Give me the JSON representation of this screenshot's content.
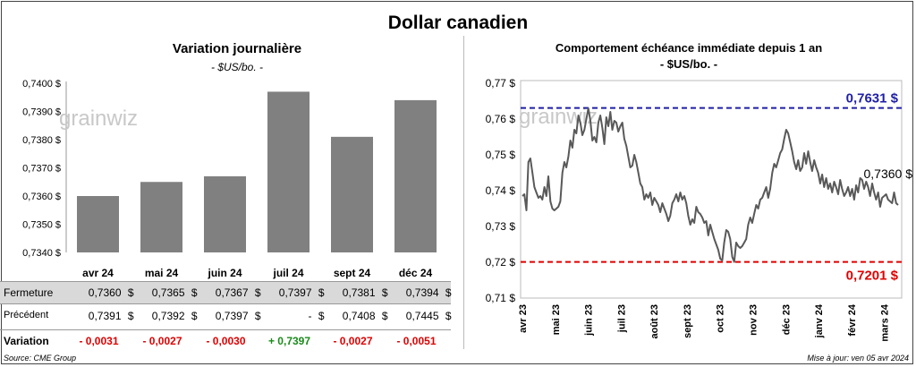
{
  "title": "Dollar canadien",
  "left": {
    "subtitle": "Variation  journalière",
    "unit": "- $US/bo. -",
    "watermark": "grainwiz"
  },
  "right": {
    "subtitle": "Comportement échéance immédiate depuis 1 an",
    "unit": "- $US/bo. -",
    "watermark": "grainwiz"
  },
  "table": {
    "rows": [
      {
        "label": "Fermeture",
        "values": [
          "0,7360",
          "0,7365",
          "0,7367",
          "0,7397",
          "0,7381",
          "0,7394"
        ],
        "currency": "$"
      },
      {
        "label": "Précédent",
        "values": [
          "0,7391",
          "0,7392",
          "0,7397",
          "-",
          "0,7408",
          "0,7445"
        ],
        "currency": "$"
      },
      {
        "label": "Variation",
        "values": [
          "- 0,0031",
          "- 0,0027",
          "- 0,0030",
          "+ 0,7397",
          "- 0,0027",
          "- 0,0051"
        ],
        "signs": [
          "neg",
          "neg",
          "neg",
          "pos",
          "neg",
          "neg"
        ]
      }
    ]
  },
  "footer": {
    "source": "Source: CME Group",
    "update": "Mise à jour: ven 05 avr 2024"
  },
  "colors": {
    "bar": "#808080",
    "line": "#595959",
    "high": "#1f1fa8",
    "low": "#e00000"
  },
  "chart_data": [
    {
      "type": "bar",
      "categories": [
        "avr 24",
        "mai 24",
        "juin 24",
        "juil 24",
        "sept 24",
        "déc 24"
      ],
      "values": [
        0.736,
        0.7365,
        0.7367,
        0.7397,
        0.7381,
        0.7394
      ],
      "ylim": [
        0.734,
        0.74
      ],
      "yticks": [
        "0,7340 $",
        "0,7350 $",
        "0,7360 $",
        "0,7370 $",
        "0,7380 $",
        "0,7390 $",
        "0,7400 $"
      ],
      "grid": false
    },
    {
      "type": "line",
      "ylim": [
        0.71,
        0.77
      ],
      "yticks": [
        "0,71 $",
        "0,72 $",
        "0,73 $",
        "0,74 $",
        "0,75 $",
        "0,76 $",
        "0,77 $"
      ],
      "xticks": [
        "avr 23",
        "mai 23",
        "juin 23",
        "juil 23",
        "août 23",
        "sept 23",
        "oct 23",
        "nov 23",
        "déc 23",
        "janv 24",
        "févr 24",
        "mars 24"
      ],
      "high": {
        "value": 0.7631,
        "label": "0,7631 $"
      },
      "low": {
        "value": 0.7201,
        "label": "0,7201 $"
      },
      "last": {
        "value": 0.736,
        "label": "0,7360 $"
      },
      "series": [
        {
          "values": [
            0.7385,
            0.739,
            0.7345,
            0.748,
            0.749,
            0.745,
            0.741,
            0.7395,
            0.738,
            0.7385,
            0.7375,
            0.741,
            0.7385,
            0.744,
            0.737,
            0.735,
            0.7345,
            0.735,
            0.7355,
            0.737,
            0.745,
            0.748,
            0.7465,
            0.7495,
            0.754,
            0.752,
            0.757,
            0.756,
            0.761,
            0.759,
            0.7555,
            0.757,
            0.76,
            0.763,
            0.7595,
            0.754,
            0.755,
            0.7535,
            0.759,
            0.761,
            0.7575,
            0.753,
            0.7605,
            0.758,
            0.762,
            0.757,
            0.7595,
            0.759,
            0.7565,
            0.758,
            0.759,
            0.7545,
            0.7525,
            0.7495,
            0.7465,
            0.747,
            0.75,
            0.748,
            0.745,
            0.742,
            0.741,
            0.7375,
            0.739,
            0.738,
            0.7395,
            0.736,
            0.738,
            0.737,
            0.736,
            0.734,
            0.7365,
            0.735,
            0.7335,
            0.7315,
            0.733,
            0.7365,
            0.7375,
            0.739,
            0.737,
            0.7395,
            0.7375,
            0.7385,
            0.7365,
            0.733,
            0.7305,
            0.732,
            0.731,
            0.7355,
            0.734,
            0.7335,
            0.7325,
            0.731,
            0.7315,
            0.7275,
            0.7305,
            0.7285,
            0.7265,
            0.725,
            0.7235,
            0.721,
            0.7205,
            0.7255,
            0.729,
            0.7285,
            0.7265,
            0.7215,
            0.7201,
            0.7255,
            0.7245,
            0.724,
            0.7245,
            0.7255,
            0.7265,
            0.7305,
            0.7325,
            0.731,
            0.7335,
            0.736,
            0.735,
            0.7375,
            0.738,
            0.7395,
            0.741,
            0.738,
            0.7405,
            0.745,
            0.7475,
            0.7465,
            0.7485,
            0.7505,
            0.7515,
            0.7545,
            0.757,
            0.756,
            0.7535,
            0.751,
            0.748,
            0.746,
            0.7485,
            0.7455,
            0.7465,
            0.7505,
            0.7475,
            0.751,
            0.748,
            0.7455,
            0.7485,
            0.7465,
            0.745,
            0.742,
            0.7445,
            0.741,
            0.7435,
            0.7405,
            0.742,
            0.7395,
            0.7425,
            0.741,
            0.739,
            0.743,
            0.7405,
            0.7385,
            0.7395,
            0.741,
            0.7385,
            0.7405,
            0.7375,
            0.7415,
            0.7395,
            0.7435,
            0.743,
            0.7405,
            0.7425,
            0.741,
            0.7385,
            0.742,
            0.7395,
            0.7375,
            0.7395,
            0.7355,
            0.738,
            0.7385,
            0.739,
            0.7375,
            0.737,
            0.7365,
            0.7395,
            0.7365,
            0.736
          ]
        }
      ]
    }
  ]
}
